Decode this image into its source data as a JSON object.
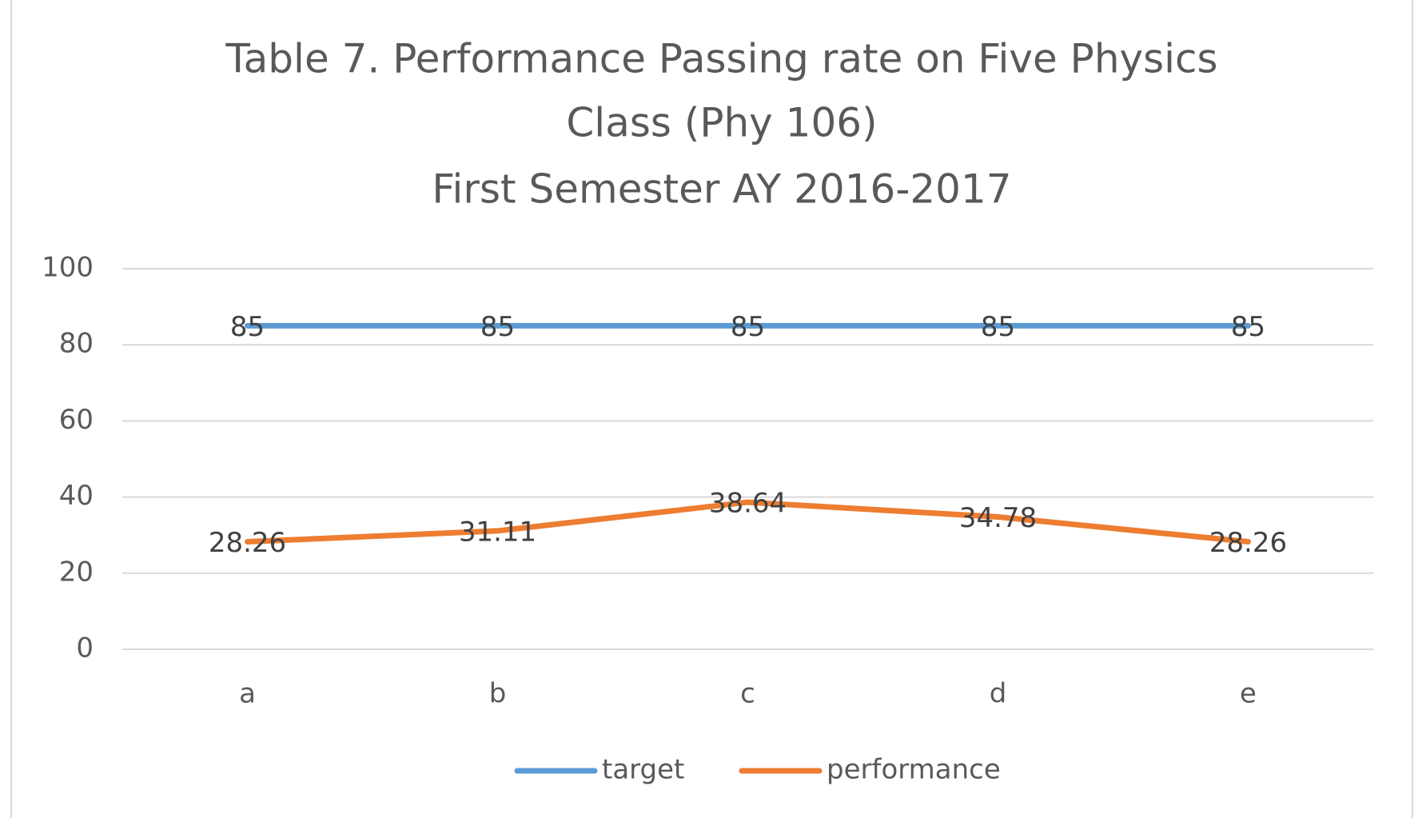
{
  "chart_data": {
    "type": "line",
    "title": [
      "Table 7. Performance Passing rate on Five Physics",
      "Class (Phy 106)",
      "First Semester  AY 2016-2017"
    ],
    "categories": [
      "a",
      "b",
      "c",
      "d",
      "e"
    ],
    "series": [
      {
        "name": "target",
        "color": "#5b9bd5",
        "values": [
          85,
          85,
          85,
          85,
          85
        ]
      },
      {
        "name": "performance",
        "color": "#ed7d31",
        "values": [
          28.26,
          31.11,
          38.64,
          34.78,
          28.26
        ]
      }
    ],
    "ylim": [
      0,
      100
    ],
    "yticks": [
      0,
      20,
      40,
      60,
      80,
      100
    ],
    "grid": true,
    "data_labels": true,
    "legend": "bottom"
  }
}
